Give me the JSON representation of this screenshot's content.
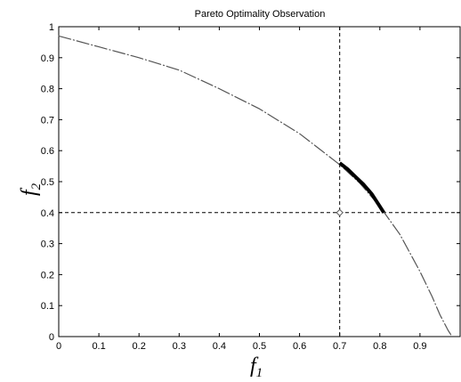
{
  "chart_data": {
    "type": "line",
    "title": "Pareto Optimality Observation",
    "xlabel": "f",
    "xlabel_sub": "1",
    "ylabel": "f",
    "ylabel_sub": "2",
    "xlim": [
      0,
      1
    ],
    "ylim": [
      0,
      1
    ],
    "xticks": [
      0,
      0.1,
      0.2,
      0.3,
      0.4,
      0.5,
      0.6,
      0.7,
      0.8,
      0.9
    ],
    "yticks": [
      0,
      0.1,
      0.2,
      0.3,
      0.4,
      0.5,
      0.6,
      0.7,
      0.8,
      0.9,
      1
    ],
    "grid": false,
    "series": [
      {
        "style": "dash-dot",
        "color": "#555555",
        "x": [
          0,
          0.1,
          0.2,
          0.3,
          0.4,
          0.5,
          0.6,
          0.65,
          0.7,
          0.75,
          0.8,
          0.85,
          0.9,
          0.93,
          0.95,
          0.97,
          0.98
        ],
        "y": [
          0.97,
          0.935,
          0.9,
          0.86,
          0.8,
          0.735,
          0.655,
          0.605,
          0.555,
          0.495,
          0.42,
          0.33,
          0.21,
          0.13,
          0.07,
          0.02,
          0
        ]
      },
      {
        "style": "solid-thick",
        "color": "#000000",
        "x": [
          0.7,
          0.72,
          0.74,
          0.76,
          0.78,
          0.8,
          0.81
        ],
        "y": [
          0.56,
          0.54,
          0.515,
          0.49,
          0.46,
          0.42,
          0.4
        ]
      }
    ],
    "reference_lines": {
      "vertical_x": 0.7,
      "horizontal_y": 0.4,
      "style": "dashed",
      "color": "#000000"
    },
    "marker": {
      "x": 0.7,
      "y": 0.4,
      "shape": "diamond"
    }
  }
}
